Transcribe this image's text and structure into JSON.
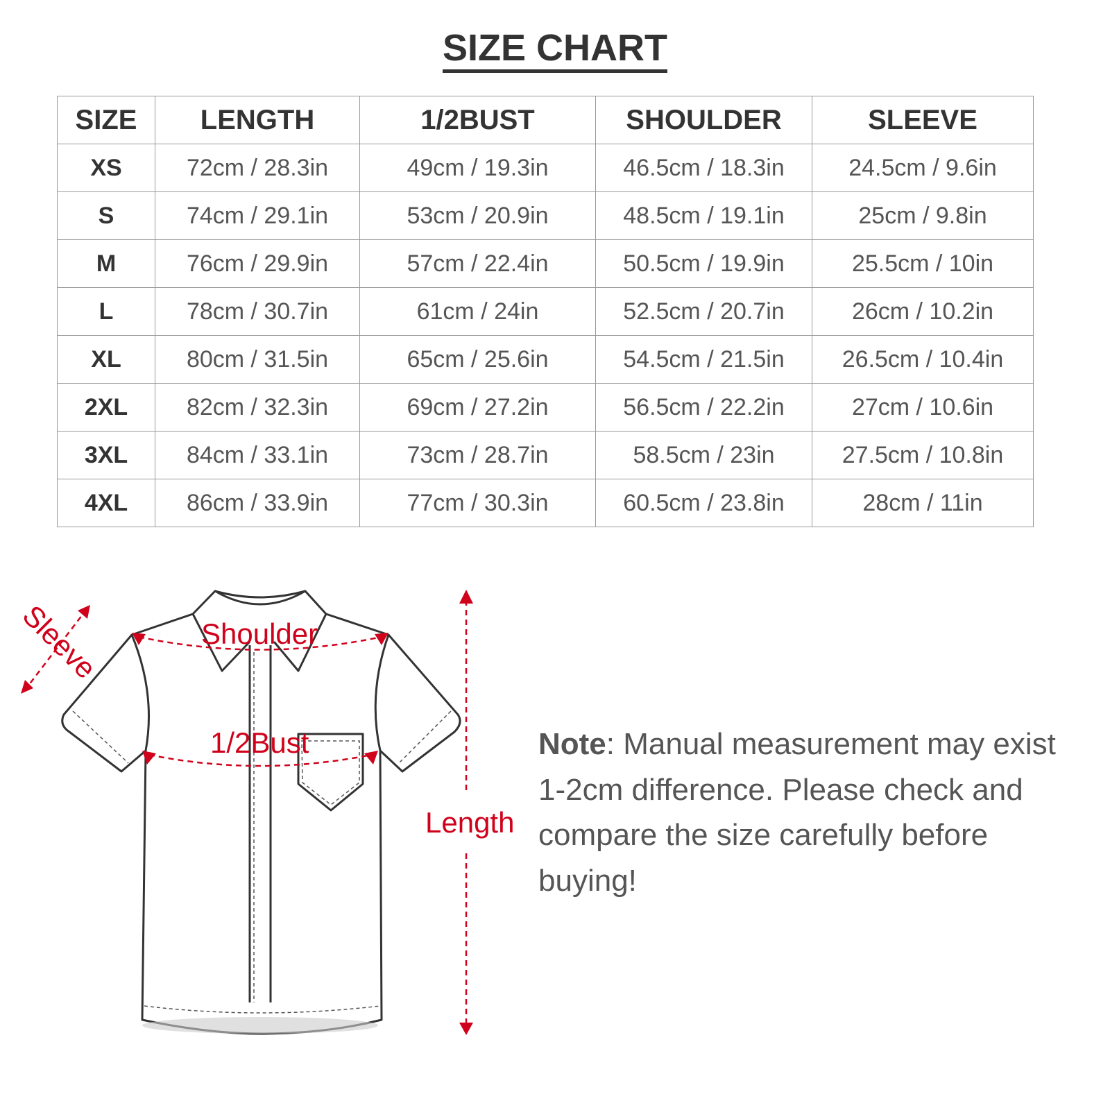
{
  "title": "SIZE CHART",
  "table": {
    "headers": [
      "SIZE",
      "LENGTH",
      "1/2BUST",
      "SHOULDER",
      "SLEEVE"
    ],
    "rows": [
      [
        "XS",
        "72cm / 28.3in",
        "49cm / 19.3in",
        "46.5cm / 18.3in",
        "24.5cm / 9.6in"
      ],
      [
        "S",
        "74cm / 29.1in",
        "53cm / 20.9in",
        "48.5cm / 19.1in",
        "25cm / 9.8in"
      ],
      [
        "M",
        "76cm / 29.9in",
        "57cm / 22.4in",
        "50.5cm / 19.9in",
        "25.5cm / 10in"
      ],
      [
        "L",
        "78cm / 30.7in",
        "61cm / 24in",
        "52.5cm / 20.7in",
        "26cm / 10.2in"
      ],
      [
        "XL",
        "80cm / 31.5in",
        "65cm / 25.6in",
        "54.5cm / 21.5in",
        "26.5cm / 10.4in"
      ],
      [
        "2XL",
        "82cm / 32.3in",
        "69cm / 27.2in",
        "56.5cm / 22.2in",
        "27cm / 10.6in"
      ],
      [
        "3XL",
        "84cm / 33.1in",
        "73cm / 28.7in",
        "58.5cm / 23in",
        "27.5cm / 10.8in"
      ],
      [
        "4XL",
        "86cm / 33.9in",
        "77cm / 30.3in",
        "60.5cm / 23.8in",
        "28cm / 11in"
      ]
    ]
  },
  "diagram": {
    "labels": {
      "sleeve": "Sleeve",
      "shoulder": "Shoulder",
      "bust": "1/2Bust",
      "length": "Length"
    },
    "accent_color": "#d0021b"
  },
  "note": {
    "label": "Note",
    "text": ": Manual measurement may exist 1-2cm difference. Please check and compare the size carefully before buying!"
  }
}
